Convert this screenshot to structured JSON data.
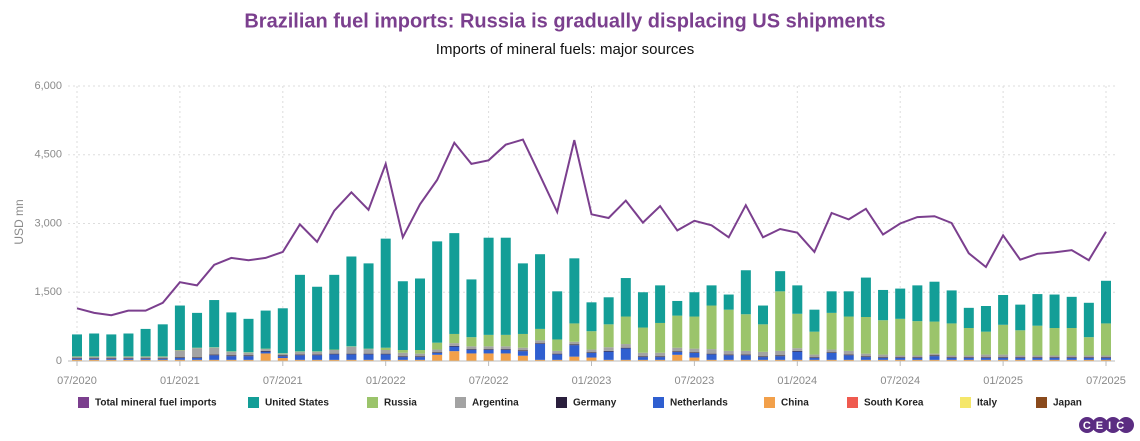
{
  "chart_data": {
    "type": "bar",
    "stacked": true,
    "title": "Brazilian fuel imports: Russia is gradually displacing US shipments",
    "subtitle": "Imports of mineral fuels: major sources",
    "y_label": "USD mn",
    "logo": "CEIC",
    "grid": true,
    "legend": "bottom",
    "ylim": [
      0,
      6000
    ],
    "yticks": [
      0,
      {
        "value": 1500,
        "label": "1,500"
      },
      {
        "value": 3000,
        "label": "3,000"
      },
      {
        "value": 4500,
        "label": "4,500"
      },
      {
        "value": 6000,
        "label": "6,000"
      }
    ],
    "categories": [
      "07/2020",
      null,
      null,
      null,
      null,
      null,
      "01/2021",
      null,
      null,
      null,
      null,
      null,
      "07/2021",
      null,
      null,
      null,
      null,
      null,
      "01/2022",
      null,
      null,
      null,
      null,
      null,
      "07/2022",
      null,
      null,
      null,
      null,
      null,
      "01/2023",
      null,
      null,
      null,
      null,
      null,
      "07/2023",
      null,
      null,
      null,
      null,
      null,
      "01/2024",
      null,
      null,
      null,
      null,
      null,
      "07/2024",
      null,
      null,
      null,
      null,
      null,
      "01/2025",
      null,
      null,
      null,
      null,
      null,
      "07/2025"
    ],
    "series": [
      {
        "name": "Total mineral fuel imports",
        "type": "line",
        "color": "#7b3f8e",
        "values": [
          1150,
          1050,
          1000,
          1100,
          1100,
          1270,
          1720,
          1650,
          2100,
          2250,
          2200,
          2250,
          2380,
          2980,
          2600,
          3280,
          3680,
          3300,
          4300,
          2700,
          3420,
          3950,
          4760,
          4300,
          4380,
          4720,
          4830,
          4050,
          3250,
          4820,
          3200,
          3120,
          3500,
          3020,
          3380,
          2850,
          3060,
          2960,
          2700,
          3400,
          2700,
          2880,
          2800,
          2380,
          3230,
          3090,
          3320,
          2760,
          3000,
          3140,
          3160,
          3010,
          2350,
          2050,
          2740,
          2210,
          2340,
          2370,
          2420,
          2200,
          2820
        ]
      },
      {
        "name": "United States",
        "color": "#139e97",
        "values": [
          480,
          500,
          480,
          500,
          600,
          700,
          970,
          760,
          1030,
          850,
          730,
          830,
          980,
          1670,
          1410,
          1630,
          1960,
          1860,
          2380,
          1500,
          1560,
          2210,
          2200,
          1260,
          2120,
          2120,
          1540,
          1630,
          1050,
          1420,
          630,
          590,
          840,
          770,
          820,
          320,
          530,
          440,
          330,
          960,
          410,
          440,
          620,
          480,
          470,
          550,
          860,
          660,
          660,
          780,
          870,
          720,
          440,
          560,
          650,
          560,
          690,
          730,
          680,
          750,
          930
        ]
      },
      {
        "name": "Russia",
        "color": "#9bc46b",
        "values": [
          10,
          10,
          10,
          10,
          10,
          10,
          10,
          10,
          10,
          10,
          10,
          10,
          10,
          10,
          10,
          10,
          10,
          10,
          50,
          60,
          80,
          150,
          200,
          200,
          250,
          250,
          300,
          250,
          250,
          400,
          400,
          500,
          600,
          550,
          650,
          700,
          700,
          950,
          900,
          800,
          600,
          1300,
          750,
          500,
          800,
          750,
          800,
          750,
          800,
          750,
          700,
          700,
          600,
          500,
          650,
          550,
          650,
          600,
          600,
          400,
          700
        ]
      },
      {
        "name": "Argentina",
        "color": "#a3a3a3",
        "values": [
          30,
          30,
          30,
          30,
          30,
          30,
          150,
          200,
          150,
          80,
          60,
          40,
          40,
          60,
          60,
          80,
          150,
          100,
          80,
          80,
          60,
          60,
          60,
          60,
          60,
          60,
          60,
          60,
          60,
          60,
          60,
          80,
          80,
          80,
          80,
          80,
          80,
          100,
          80,
          80,
          100,
          100,
          60,
          60,
          60,
          80,
          60,
          60,
          40,
          40,
          40,
          40,
          40,
          60,
          60,
          40,
          40,
          40,
          40,
          40,
          40
        ]
      },
      {
        "name": "Germany",
        "color": "#2a1f3d",
        "values": [
          15,
          15,
          15,
          15,
          15,
          15,
          15,
          15,
          15,
          15,
          15,
          15,
          15,
          15,
          15,
          15,
          15,
          15,
          15,
          15,
          15,
          15,
          15,
          15,
          15,
          15,
          15,
          15,
          15,
          15,
          15,
          15,
          15,
          15,
          15,
          15,
          15,
          15,
          15,
          15,
          15,
          15,
          15,
          15,
          15,
          15,
          15,
          15,
          15,
          15,
          15,
          15,
          15,
          15,
          15,
          15,
          15,
          15,
          15,
          15,
          15
        ]
      },
      {
        "name": "Netherlands",
        "color": "#2f5fd0",
        "values": [
          20,
          20,
          20,
          20,
          20,
          20,
          40,
          40,
          100,
          80,
          80,
          40,
          40,
          100,
          100,
          120,
          120,
          120,
          120,
          60,
          60,
          40,
          100,
          80,
          80,
          80,
          100,
          350,
          120,
          250,
          100,
          180,
          250,
          60,
          60,
          60,
          100,
          120,
          100,
          100,
          60,
          80,
          180,
          40,
          150,
          100,
          60,
          40,
          40,
          40,
          80,
          40,
          40,
          40,
          40,
          40,
          40,
          40,
          40,
          40,
          40
        ]
      },
      {
        "name": "China",
        "color": "#f2a04a",
        "values": [
          10,
          10,
          10,
          10,
          10,
          10,
          10,
          10,
          10,
          10,
          10,
          150,
          50,
          10,
          10,
          10,
          10,
          10,
          10,
          10,
          10,
          120,
          200,
          150,
          150,
          150,
          100,
          10,
          10,
          80,
          60,
          10,
          10,
          10,
          10,
          120,
          60,
          10,
          10,
          10,
          10,
          10,
          10,
          10,
          10,
          10,
          10,
          10,
          10,
          10,
          10,
          10,
          10,
          10,
          10,
          10,
          10,
          10,
          10,
          10,
          10
        ]
      },
      {
        "name": "South Korea",
        "color": "#ef5a4f",
        "values": [
          5,
          5,
          5,
          5,
          5,
          5,
          5,
          5,
          5,
          5,
          5,
          5,
          5,
          5,
          5,
          5,
          5,
          5,
          5,
          5,
          5,
          5,
          5,
          5,
          5,
          5,
          5,
          5,
          5,
          5,
          5,
          5,
          5,
          5,
          5,
          5,
          5,
          5,
          5,
          5,
          5,
          5,
          5,
          5,
          5,
          5,
          5,
          5,
          5,
          5,
          5,
          5,
          5,
          5,
          5,
          5,
          5,
          5,
          5,
          5,
          5
        ]
      },
      {
        "name": "Italy",
        "color": "#f5e76a",
        "values": [
          5,
          5,
          5,
          5,
          5,
          5,
          5,
          5,
          5,
          5,
          5,
          5,
          5,
          5,
          5,
          5,
          5,
          5,
          5,
          5,
          5,
          5,
          5,
          5,
          5,
          5,
          5,
          5,
          5,
          5,
          5,
          5,
          5,
          5,
          5,
          5,
          5,
          5,
          5,
          5,
          5,
          5,
          5,
          5,
          5,
          5,
          5,
          5,
          5,
          5,
          5,
          5,
          5,
          5,
          5,
          5,
          5,
          5,
          5,
          5,
          5
        ]
      },
      {
        "name": "Japan",
        "color": "#8a4a1c",
        "values": [
          5,
          5,
          5,
          5,
          5,
          5,
          5,
          5,
          5,
          5,
          5,
          5,
          5,
          5,
          5,
          5,
          5,
          5,
          5,
          5,
          5,
          5,
          5,
          5,
          5,
          5,
          5,
          5,
          5,
          5,
          5,
          5,
          5,
          5,
          5,
          5,
          5,
          5,
          5,
          5,
          5,
          5,
          5,
          5,
          5,
          5,
          5,
          5,
          5,
          5,
          5,
          5,
          5,
          5,
          5,
          5,
          5,
          5,
          5,
          5,
          5
        ]
      }
    ]
  }
}
